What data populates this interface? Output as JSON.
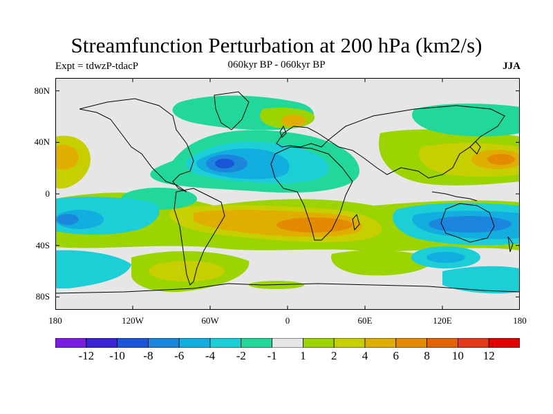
{
  "title": "Streamfunction Perturbation at 200 hPa (km2/s)",
  "experiment": "Expt = tdwzP-tdacP",
  "period": "060kyr BP - 060kyr BP",
  "season": "JJA",
  "axes": {
    "y_ticks": [
      {
        "label": "80N",
        "lat": 80
      },
      {
        "label": "40N",
        "lat": 40
      },
      {
        "label": "0",
        "lat": 0
      },
      {
        "label": "40S",
        "lat": -40
      },
      {
        "label": "80S",
        "lat": -80
      }
    ],
    "x_ticks": [
      {
        "label": "180",
        "lon": -180
      },
      {
        "label": "120W",
        "lon": -120
      },
      {
        "label": "60W",
        "lon": -60
      },
      {
        "label": "0",
        "lon": 0
      },
      {
        "label": "60E",
        "lon": 60
      },
      {
        "label": "120E",
        "lon": 120
      },
      {
        "label": "180",
        "lon": 180
      }
    ]
  },
  "colorbar": {
    "labels": [
      "-12",
      "-10",
      "-8",
      "-6",
      "-4",
      "-2",
      "-1",
      "1",
      "2",
      "4",
      "6",
      "8",
      "10",
      "12"
    ],
    "colors": [
      "#7a1de0",
      "#3a22d6",
      "#1a55d8",
      "#1b86dc",
      "#12aee0",
      "#1ccfd6",
      "#22d79a",
      "#e6e6e6",
      "#9bd400",
      "#c8cf00",
      "#dfae00",
      "#e38a00",
      "#e26400",
      "#e33a1a",
      "#e00000"
    ]
  },
  "chart_data": {
    "type": "filled_contour_map",
    "title": "Streamfunction Perturbation at 200 hPa (km2/s)",
    "projection": "cylindrical equidistant",
    "lon_range": [
      -180,
      180
    ],
    "lat_range": [
      -90,
      90
    ],
    "contour_levels": [
      -12,
      -10,
      -8,
      -6,
      -4,
      -2,
      -1,
      1,
      2,
      4,
      6,
      8,
      10,
      12
    ],
    "units": "km2/s",
    "features": [
      {
        "name": "north-atlantic-low",
        "lon": -45,
        "lat": 27,
        "rx": 55,
        "ry": 26,
        "value": -7
      },
      {
        "name": "north-pacific-high",
        "lon": -168,
        "lat": 33,
        "rx": 30,
        "ry": 18,
        "value": 5
      },
      {
        "name": "europe-arctic-high",
        "lon": 0,
        "lat": 66,
        "rx": 32,
        "ry": 12,
        "value": 4
      },
      {
        "name": "western-pacific-high",
        "lon": 155,
        "lat": 30,
        "rx": 45,
        "ry": 14,
        "value": 6
      },
      {
        "name": "south-atlantic-high",
        "lon": 15,
        "lat": -28,
        "rx": 75,
        "ry": 16,
        "value": 6
      },
      {
        "name": "southeast-pacific-low",
        "lon": -150,
        "lat": -20,
        "rx": 55,
        "ry": 14,
        "value": -5
      },
      {
        "name": "indian-ocean-low",
        "lon": 120,
        "lat": -20,
        "rx": 75,
        "ry": 16,
        "value": -5
      },
      {
        "name": "southern-ocean-high",
        "lon": -80,
        "lat": -62,
        "rx": 50,
        "ry": 14,
        "value": 4
      }
    ]
  }
}
